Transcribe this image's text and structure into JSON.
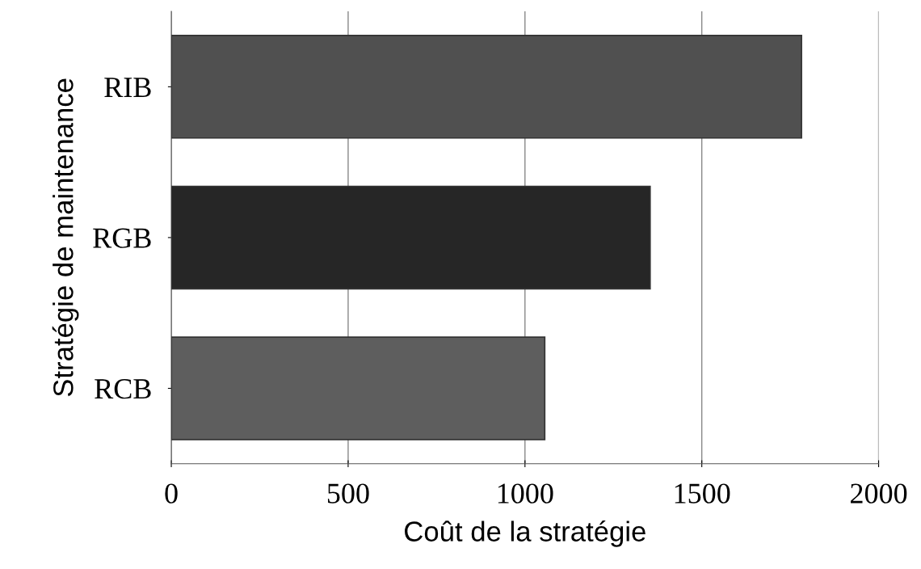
{
  "chart_data": {
    "type": "bar",
    "orientation": "horizontal",
    "xlabel": "Coût de la stratégie",
    "ylabel": "Stratégie de maintenance",
    "categories": [
      "RIB",
      "RGB",
      "RCB"
    ],
    "values": [
      1782,
      1354,
      1056
    ],
    "colors": [
      "#505050",
      "#262626",
      "#5e5e5e"
    ],
    "xlim": [
      0,
      2000
    ],
    "xticks": [
      0,
      500,
      1000,
      1500,
      2000
    ],
    "grid": "x"
  }
}
